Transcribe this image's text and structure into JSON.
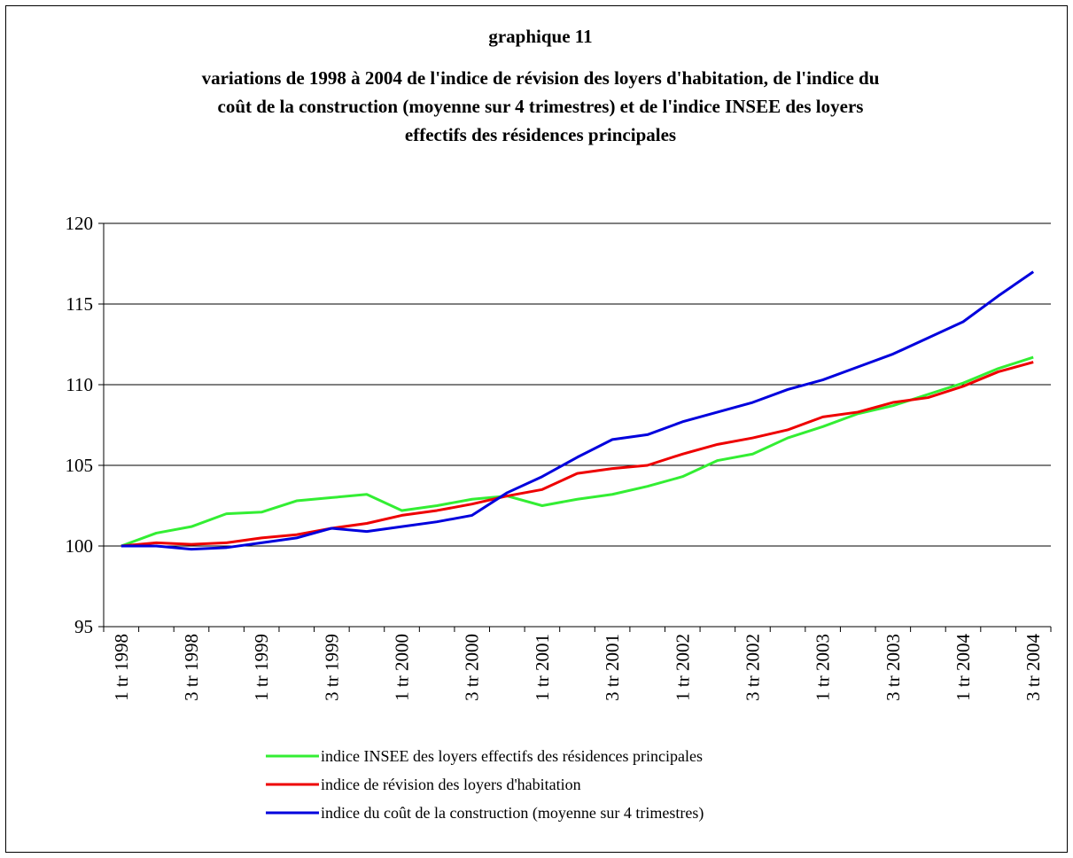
{
  "chart_data": {
    "type": "line",
    "title": "graphique 11",
    "subtitle": [
      "variations de 1998 à 2004 de l'indice de révision des loyers d'habitation, de l'indice du",
      "coût de la construction (moyenne sur 4 trimestres) et de l'indice INSEE des  loyers",
      "effectifs des résidences principales"
    ],
    "categories": [
      "1 tr 1998",
      null,
      "3 tr 1998",
      null,
      "1 tr 1999",
      null,
      "3 tr 1999",
      null,
      "1 tr 2000",
      null,
      "3 tr 2000",
      null,
      "1 tr 2001",
      null,
      "3 tr 2001",
      null,
      "1 tr 2002",
      null,
      "3 tr 2002",
      null,
      "1 tr 2003",
      null,
      "3 tr 2003",
      null,
      "1 tr 2004",
      null,
      "3 tr 2004"
    ],
    "series": [
      {
        "name": "indice INSEE des loyers effectifs des résidences principales",
        "color": "#33ee33",
        "values": [
          100,
          100.8,
          101.2,
          102.0,
          102.1,
          102.8,
          103.0,
          103.2,
          102.2,
          102.5,
          102.9,
          103.1,
          102.5,
          102.9,
          103.2,
          103.7,
          104.3,
          105.3,
          105.7,
          106.7,
          107.4,
          108.2,
          108.7,
          109.4,
          110.1,
          111.0,
          111.7
        ]
      },
      {
        "name": "indice de révision des loyers d'habitation",
        "color": "#ee0000",
        "values": [
          100,
          100.2,
          100.1,
          100.2,
          100.5,
          100.7,
          101.1,
          101.4,
          101.9,
          102.2,
          102.6,
          103.1,
          103.5,
          104.5,
          104.8,
          105.0,
          105.7,
          106.3,
          106.7,
          107.2,
          108.0,
          108.3,
          108.9,
          109.2,
          109.9,
          110.8,
          111.4
        ]
      },
      {
        "name": "indice du coût de la construction (moyenne sur 4 trimestres)",
        "color": "#0000dd",
        "values": [
          100,
          100,
          99.8,
          99.9,
          100.2,
          100.5,
          101.1,
          100.9,
          101.2,
          101.5,
          101.9,
          103.3,
          104.3,
          105.5,
          106.6,
          106.9,
          107.7,
          108.3,
          108.9,
          109.7,
          110.3,
          111.1,
          111.9,
          112.9,
          113.9,
          115.5,
          117.0
        ]
      }
    ],
    "ylim": [
      95,
      120
    ],
    "yticks": [
      95,
      100,
      105,
      110,
      115,
      120
    ],
    "grid": true
  }
}
